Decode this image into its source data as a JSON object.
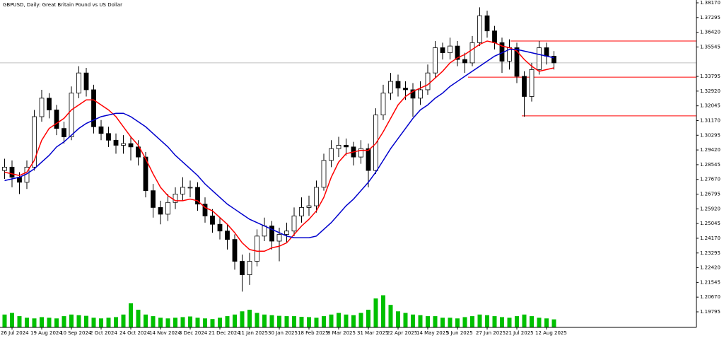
{
  "chart_data": {
    "type": "candlestick",
    "title": "GBPUSD, Daily:  Great Britain Pound vs US Dollar",
    "categories": [
      null,
      "26 Jul 2024",
      null,
      null,
      null,
      "19 Aug 2024",
      null,
      null,
      null,
      "10 Sep 2024",
      null,
      null,
      null,
      "2 Oct 2024",
      null,
      null,
      null,
      "24 Oct 2024",
      null,
      null,
      null,
      "14 Nov 2024",
      null,
      null,
      null,
      "3 Dec 2024",
      null,
      null,
      null,
      "21 Dec 2024",
      null,
      null,
      null,
      "11 Jan 2025",
      null,
      null,
      null,
      "30 Jan 2025",
      null,
      null,
      null,
      "18 Feb 2025",
      null,
      null,
      null,
      "8 Mar 2025",
      null,
      null,
      null,
      "31 Mar 2025",
      null,
      null,
      null,
      "22 Apr 2025",
      null,
      null,
      null,
      "14 May 2025",
      null,
      null,
      null,
      "5 Jun 2025",
      null,
      null,
      null,
      "27 Jun 2025",
      null,
      null,
      null,
      "21 Jul 2025",
      null,
      null,
      null,
      "12 Aug 2025",
      null
    ],
    "open": [
      1.282,
      1.284,
      1.278,
      1.275,
      1.284,
      1.314,
      1.325,
      1.318,
      1.307,
      1.302,
      1.328,
      1.34,
      1.33,
      1.308,
      1.304,
      1.3,
      1.297,
      1.298,
      1.296,
      1.29,
      1.27,
      1.26,
      1.256,
      1.263,
      1.268,
      1.272,
      1.272,
      1.262,
      1.255,
      1.25,
      1.246,
      1.241,
      1.228,
      1.22,
      1.228,
      1.243,
      1.249,
      1.24,
      1.244,
      1.246,
      1.255,
      1.26,
      1.261,
      1.272,
      1.288,
      1.295,
      1.297,
      1.296,
      1.29,
      1.295,
      1.282,
      1.315,
      1.328,
      1.335,
      1.331,
      1.33,
      1.325,
      1.33,
      1.34,
      1.355,
      1.352,
      1.356,
      1.348,
      1.346,
      1.358,
      1.374,
      1.365,
      1.358,
      1.347,
      1.355,
      1.338,
      1.326,
      1.342,
      1.355,
      1.35
    ],
    "high": [
      1.289,
      1.288,
      1.281,
      1.288,
      1.318,
      1.33,
      1.328,
      1.321,
      1.311,
      1.332,
      1.344,
      1.343,
      1.333,
      1.312,
      1.308,
      1.304,
      1.303,
      1.302,
      1.3,
      1.293,
      1.274,
      1.264,
      1.268,
      1.272,
      1.278,
      1.276,
      1.275,
      1.266,
      1.259,
      1.254,
      1.25,
      1.244,
      1.232,
      1.233,
      1.247,
      1.254,
      1.252,
      1.248,
      1.251,
      1.26,
      1.266,
      1.267,
      1.276,
      1.292,
      1.3,
      1.302,
      1.301,
      1.299,
      1.3,
      1.298,
      1.319,
      1.333,
      1.34,
      1.339,
      1.335,
      1.334,
      1.335,
      1.345,
      1.359,
      1.358,
      1.361,
      1.359,
      1.352,
      1.362,
      1.379,
      1.377,
      1.368,
      1.361,
      1.36,
      1.358,
      1.341,
      1.346,
      1.359,
      1.358,
      1.353
    ],
    "low": [
      1.277,
      1.272,
      1.268,
      1.271,
      1.282,
      1.311,
      1.313,
      1.303,
      1.298,
      1.3,
      1.325,
      1.326,
      1.304,
      1.3,
      1.296,
      1.292,
      1.292,
      1.288,
      1.285,
      1.266,
      1.254,
      1.25,
      1.252,
      1.259,
      1.264,
      1.266,
      1.258,
      1.251,
      1.245,
      1.241,
      1.235,
      1.223,
      1.21,
      1.214,
      1.225,
      1.24,
      1.235,
      1.228,
      1.239,
      1.243,
      1.251,
      1.255,
      1.257,
      1.27,
      1.284,
      1.29,
      1.291,
      1.285,
      1.286,
      1.272,
      1.28,
      1.312,
      1.324,
      1.326,
      1.324,
      1.314,
      1.321,
      1.327,
      1.337,
      1.348,
      1.348,
      1.344,
      1.34,
      1.344,
      1.356,
      1.361,
      1.354,
      1.34,
      1.342,
      1.334,
      1.314,
      1.323,
      1.339,
      1.345,
      1.342
    ],
    "close": [
      1.284,
      1.278,
      1.275,
      1.284,
      1.314,
      1.325,
      1.318,
      1.307,
      1.302,
      1.328,
      1.34,
      1.33,
      1.308,
      1.304,
      1.3,
      1.297,
      1.298,
      1.296,
      1.29,
      1.27,
      1.26,
      1.256,
      1.263,
      1.268,
      1.272,
      1.272,
      1.262,
      1.255,
      1.25,
      1.246,
      1.241,
      1.228,
      1.22,
      1.228,
      1.243,
      1.249,
      1.24,
      1.244,
      1.246,
      1.255,
      1.26,
      1.261,
      1.272,
      1.288,
      1.295,
      1.297,
      1.296,
      1.29,
      1.295,
      1.282,
      1.315,
      1.328,
      1.335,
      1.331,
      1.33,
      1.325,
      1.33,
      1.34,
      1.355,
      1.352,
      1.356,
      1.348,
      1.346,
      1.358,
      1.374,
      1.365,
      1.358,
      1.347,
      1.355,
      1.338,
      1.326,
      1.342,
      1.355,
      1.35,
      1.346
    ],
    "volume": [
      40,
      45,
      35,
      30,
      28,
      32,
      30,
      28,
      35,
      40,
      38,
      36,
      30,
      28,
      30,
      32,
      40,
      75,
      55,
      40,
      35,
      30,
      28,
      30,
      32,
      34,
      30,
      28,
      26,
      30,
      35,
      40,
      50,
      55,
      45,
      40,
      38,
      36,
      35,
      35,
      33,
      32,
      30,
      35,
      40,
      45,
      40,
      38,
      45,
      55,
      90,
      100,
      70,
      50,
      45,
      40,
      38,
      35,
      35,
      30,
      30,
      28,
      32,
      35,
      40,
      38,
      35,
      32,
      30,
      35,
      40,
      35,
      30,
      28,
      25
    ],
    "volume_ylim": [
      0,
      220
    ],
    "candle_color": "#000000",
    "volume_color": "#00c000",
    "lines": [
      {
        "color": "#ff0000",
        "values": [
          1.281,
          1.28,
          1.279,
          1.281,
          1.288,
          1.3,
          1.307,
          1.31,
          1.313,
          1.318,
          1.321,
          1.324,
          1.324,
          1.321,
          1.318,
          1.314,
          1.308,
          1.302,
          1.297,
          1.289,
          1.28,
          1.272,
          1.267,
          1.264,
          1.264,
          1.265,
          1.264,
          1.26,
          1.258,
          1.254,
          1.25,
          1.245,
          1.239,
          1.235,
          1.234,
          1.234,
          1.236,
          1.237,
          1.239,
          1.244,
          1.249,
          1.253,
          1.258,
          1.266,
          1.278,
          1.287,
          1.292,
          1.293,
          1.294,
          1.294,
          1.298,
          1.305,
          1.313,
          1.321,
          1.326,
          1.329,
          1.331,
          1.333,
          1.337,
          1.341,
          1.346,
          1.349,
          1.351,
          1.354,
          1.357,
          1.359,
          1.358,
          1.356,
          1.355,
          1.353,
          1.348,
          1.344,
          1.341,
          1.342,
          1.343
        ]
      },
      {
        "color": "#0000cd",
        "values": [
          1.276,
          1.277,
          1.278,
          1.28,
          1.283,
          1.287,
          1.291,
          1.296,
          1.299,
          1.303,
          1.307,
          1.31,
          1.312,
          1.314,
          1.315,
          1.316,
          1.316,
          1.314,
          1.311,
          1.308,
          1.304,
          1.3,
          1.296,
          1.291,
          1.287,
          1.283,
          1.279,
          1.274,
          1.27,
          1.266,
          1.262,
          1.259,
          1.256,
          1.253,
          1.251,
          1.249,
          1.247,
          1.245,
          1.243,
          1.242,
          1.242,
          1.242,
          1.243,
          1.247,
          1.251,
          1.256,
          1.261,
          1.265,
          1.27,
          1.275,
          1.281,
          1.288,
          1.295,
          1.301,
          1.307,
          1.313,
          1.318,
          1.321,
          1.325,
          1.328,
          1.332,
          1.335,
          1.338,
          1.341,
          1.344,
          1.347,
          1.35,
          1.352,
          1.354,
          1.354,
          1.353,
          1.352,
          1.351,
          1.35,
          1.349
        ]
      }
    ],
    "levels": [
      1.359,
      1.3375,
      1.3145
    ],
    "level_color": "#ff0000",
    "ylim": [
      1.1887,
      1.38338
    ],
    "yticks": [
      {
        "value": 1.3817,
        "label": "1.38170"
      },
      {
        "value": 1.37295,
        "label": "1.37295"
      },
      {
        "value": 1.3642,
        "label": "1.36420"
      },
      {
        "value": 1.35545,
        "label": "1.35545"
      },
      {
        "value": 1.33795,
        "label": "1.33795"
      },
      {
        "value": 1.3292,
        "label": "1.32920"
      },
      {
        "value": 1.32045,
        "label": "1.32045"
      },
      {
        "value": 1.3117,
        "label": "1.31170"
      },
      {
        "value": 1.30295,
        "label": "1.30295"
      },
      {
        "value": 1.2942,
        "label": "1.29420"
      },
      {
        "value": 1.28545,
        "label": "1.28545"
      },
      {
        "value": 1.2767,
        "label": "1.27670"
      },
      {
        "value": 1.26795,
        "label": "1.26795"
      },
      {
        "value": 1.2592,
        "label": "1.25920"
      },
      {
        "value": 1.25045,
        "label": "1.25045"
      },
      {
        "value": 1.2417,
        "label": "1.24170"
      },
      {
        "value": 1.23295,
        "label": "1.23295"
      },
      {
        "value": 1.2242,
        "label": "1.22420"
      },
      {
        "value": 1.21545,
        "label": "1.21545"
      },
      {
        "value": 1.2067,
        "label": "1.20670"
      },
      {
        "value": 1.19795,
        "label": "1.19795"
      }
    ]
  }
}
